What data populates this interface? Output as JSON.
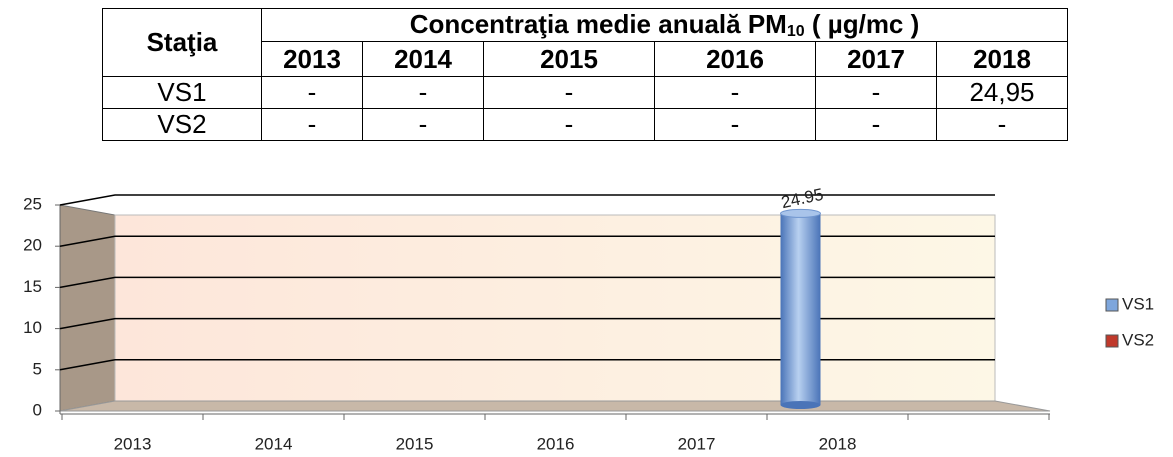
{
  "table": {
    "header": {
      "station": "Staţia",
      "title_parts": [
        "Concentraţia medie anuală  PM",
        "10",
        " ( µg/mc )"
      ],
      "years": [
        "2013",
        "2014",
        "2015",
        "2016",
        "2017",
        "2018"
      ]
    },
    "rows": [
      [
        "VS1",
        "-",
        "-",
        "-",
        "-",
        "-",
        "24,95"
      ],
      [
        "VS2",
        "-",
        "-",
        "-",
        "-",
        "-",
        "-"
      ]
    ]
  },
  "chart_data": {
    "type": "bar",
    "categories": [
      "2013",
      "2014",
      "2015",
      "2016",
      "2017",
      "2018"
    ],
    "series": [
      {
        "name": "VS1",
        "color": "#7ea6dc",
        "values": [
          null,
          null,
          null,
          null,
          null,
          24.95
        ]
      },
      {
        "name": "VS2",
        "color": "#c0392b",
        "values": [
          null,
          null,
          null,
          null,
          null,
          null
        ]
      }
    ],
    "ylim": [
      0,
      25
    ],
    "yticks": [
      0,
      5,
      10,
      15,
      20,
      25
    ],
    "grid": true,
    "legend": "right"
  }
}
